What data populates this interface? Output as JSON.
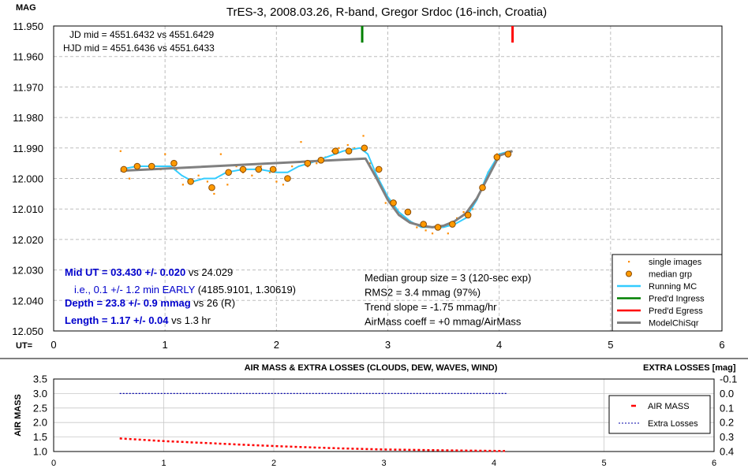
{
  "chart_data": [
    {
      "type": "scatter",
      "title": "TrES-3, 2008.03.26, R-band, Gregor Srdoc (16-inch, Croatia)",
      "ylabel": "MAG",
      "xlabel": "UT=",
      "xlim": [
        0,
        6
      ],
      "ylim": [
        11.95,
        12.05
      ],
      "y_inverted": true,
      "x_ticks": [
        "0",
        "1",
        "2",
        "3",
        "4",
        "5",
        "6"
      ],
      "y_ticks": [
        "11.950",
        "11.960",
        "11.970",
        "11.980",
        "11.990",
        "12.000",
        "12.010",
        "12.020",
        "12.030",
        "12.040",
        "12.050"
      ],
      "grid": true,
      "legend_position": "bottom-right",
      "legend": [
        "single images",
        "median grp",
        "Running MC",
        "Pred'd Ingress",
        "Pred'd Egress",
        "ModelChiSqr"
      ],
      "annotations_top": [
        "JD mid = 4551.6432 vs 4551.6429",
        "HJD mid = 4551.6436 vs 4551.6433"
      ],
      "annotations_left": {
        "mid_ut_bold": "Mid UT = 03.430 +/- 0.020",
        "mid_ut_rest": " vs 24.029",
        "early_blue": "i.e., 0.1 +/- 1.2 min EARLY",
        "early_rest": " (4185.9101, 1.30619)",
        "depth_bold": "Depth = 23.8 +/- 0.9 mmag",
        "depth_rest": " vs 26 (R)",
        "length_bold": "Length = 1.17 +/- 0.04",
        "length_rest": " vs 1.3 hr"
      },
      "annotations_right": [
        "Median group size = 3 (120-sec exp)",
        "RMS2 = 3.4 mmag (97%)",
        "Trend slope = -1.75 mmag/hr",
        "AirMass coeff = +0 mmag/AirMass"
      ],
      "colors": {
        "single": "#ff8c00",
        "median": "#ff9a00",
        "running": "#33ccff",
        "ingress": "#008000",
        "egress": "#ff0000",
        "model": "#808080"
      },
      "pred_ingress_x": 2.77,
      "pred_egress_x": 4.12,
      "series": [
        {
          "name": "single images",
          "x": [
            0.6,
            0.68,
            0.74,
            0.86,
            0.96,
            1.0,
            1.1,
            1.16,
            1.24,
            1.3,
            1.38,
            1.44,
            1.5,
            1.56,
            1.64,
            1.7,
            1.78,
            1.86,
            1.94,
            2.0,
            2.06,
            2.14,
            2.22,
            2.28,
            2.36,
            2.44,
            2.5,
            2.56,
            2.64,
            2.7,
            2.78,
            2.84,
            2.92,
            2.98,
            3.06,
            3.12,
            3.2,
            3.26,
            3.34,
            3.4,
            3.48,
            3.54,
            3.62,
            3.68,
            3.76,
            3.84,
            3.9,
            3.98,
            4.04,
            4.1
          ],
          "y": [
            11.991,
            12.0,
            11.996,
            11.996,
            11.997,
            11.992,
            11.997,
            12.002,
            12.001,
            11.999,
            12.001,
            12.005,
            11.992,
            12.002,
            11.996,
            11.998,
            11.999,
            11.996,
            11.998,
            12.001,
            12.002,
            11.996,
            11.988,
            11.996,
            11.995,
            11.993,
            11.991,
            11.99,
            11.989,
            11.99,
            11.986,
            11.995,
            12.0,
            12.008,
            12.01,
            12.012,
            12.014,
            12.016,
            12.017,
            12.018,
            12.016,
            12.018,
            12.013,
            12.011,
            12.01,
            12.003,
            11.998,
            11.992,
            11.992,
            11.991
          ]
        },
        {
          "name": "median grp",
          "x": [
            0.63,
            0.75,
            0.88,
            1.08,
            1.23,
            1.42,
            1.57,
            1.7,
            1.84,
            1.97,
            2.1,
            2.28,
            2.4,
            2.53,
            2.65,
            2.79,
            2.92,
            3.05,
            3.18,
            3.32,
            3.45,
            3.58,
            3.72,
            3.85,
            3.98,
            4.08
          ],
          "y": [
            11.997,
            11.996,
            11.996,
            11.995,
            12.001,
            12.003,
            11.998,
            11.997,
            11.997,
            11.997,
            12.0,
            11.995,
            11.994,
            11.991,
            11.991,
            11.99,
            11.997,
            12.008,
            12.011,
            12.015,
            12.016,
            12.015,
            12.012,
            12.003,
            11.993,
            11.992
          ]
        },
        {
          "name": "Running MC",
          "x": [
            0.6,
            0.75,
            0.9,
            1.05,
            1.15,
            1.25,
            1.35,
            1.45,
            1.55,
            1.7,
            1.85,
            2.0,
            2.1,
            2.2,
            2.3,
            2.45,
            2.6,
            2.75,
            2.82,
            2.9,
            3.0,
            3.1,
            3.2,
            3.3,
            3.4,
            3.5,
            3.6,
            3.7,
            3.8,
            3.9,
            4.0,
            4.1
          ],
          "y": [
            11.997,
            11.996,
            11.996,
            11.996,
            11.999,
            12.001,
            12.0,
            12.0,
            11.998,
            11.997,
            11.997,
            11.998,
            11.998,
            11.996,
            11.995,
            11.993,
            11.991,
            11.99,
            11.992,
            11.999,
            12.006,
            12.011,
            12.014,
            12.016,
            12.016,
            12.016,
            12.015,
            12.013,
            12.007,
            11.998,
            11.992,
            11.991
          ]
        },
        {
          "name": "ModelChiSqr",
          "x": [
            0.6,
            2.8,
            2.9,
            3.0,
            3.1,
            3.2,
            3.3,
            3.4,
            3.5,
            3.6,
            3.7,
            3.8,
            3.9,
            4.0,
            4.12
          ],
          "y": [
            11.9975,
            11.9935,
            12.0,
            12.007,
            12.012,
            12.0145,
            12.0155,
            12.016,
            12.0155,
            12.014,
            12.0115,
            12.0065,
            11.9995,
            11.9925,
            11.991
          ]
        }
      ]
    },
    {
      "type": "line",
      "title": "AIR MASS & EXTRA LOSSES (CLOUDS, DEW, WAVES, WIND)",
      "ylabel": "AIR MASS",
      "y2label": "EXTRA LOSSES [mag]",
      "xlim": [
        0,
        6
      ],
      "ylim": [
        1.0,
        3.5
      ],
      "y2lim": [
        -0.1,
        0.4
      ],
      "y2_inverted": true,
      "x_ticks": [
        "0",
        "1",
        "2",
        "3",
        "4",
        "5",
        "6"
      ],
      "y_ticks": [
        "1.0",
        "1.5",
        "2.0",
        "2.5",
        "3.0",
        "3.5"
      ],
      "y2_ticks": [
        "-0.1",
        "0.0",
        "0.1",
        "0.2",
        "0.3",
        "0.4"
      ],
      "legend_position": "right",
      "legend": [
        "AIR MASS",
        "Extra Losses"
      ],
      "colors": {
        "airmass": "#ff0000",
        "extra": "#0000aa"
      },
      "series": [
        {
          "name": "AIR MASS",
          "x": [
            0.6,
            1.0,
            1.4,
            1.8,
            2.2,
            2.6,
            3.0,
            3.4,
            3.8,
            4.1
          ],
          "y": [
            1.45,
            1.36,
            1.29,
            1.22,
            1.16,
            1.11,
            1.07,
            1.05,
            1.03,
            1.02
          ]
        },
        {
          "name": "Extra Losses",
          "x": [
            0.6,
            4.12
          ],
          "y": [
            0.0,
            0.0
          ]
        }
      ]
    }
  ]
}
